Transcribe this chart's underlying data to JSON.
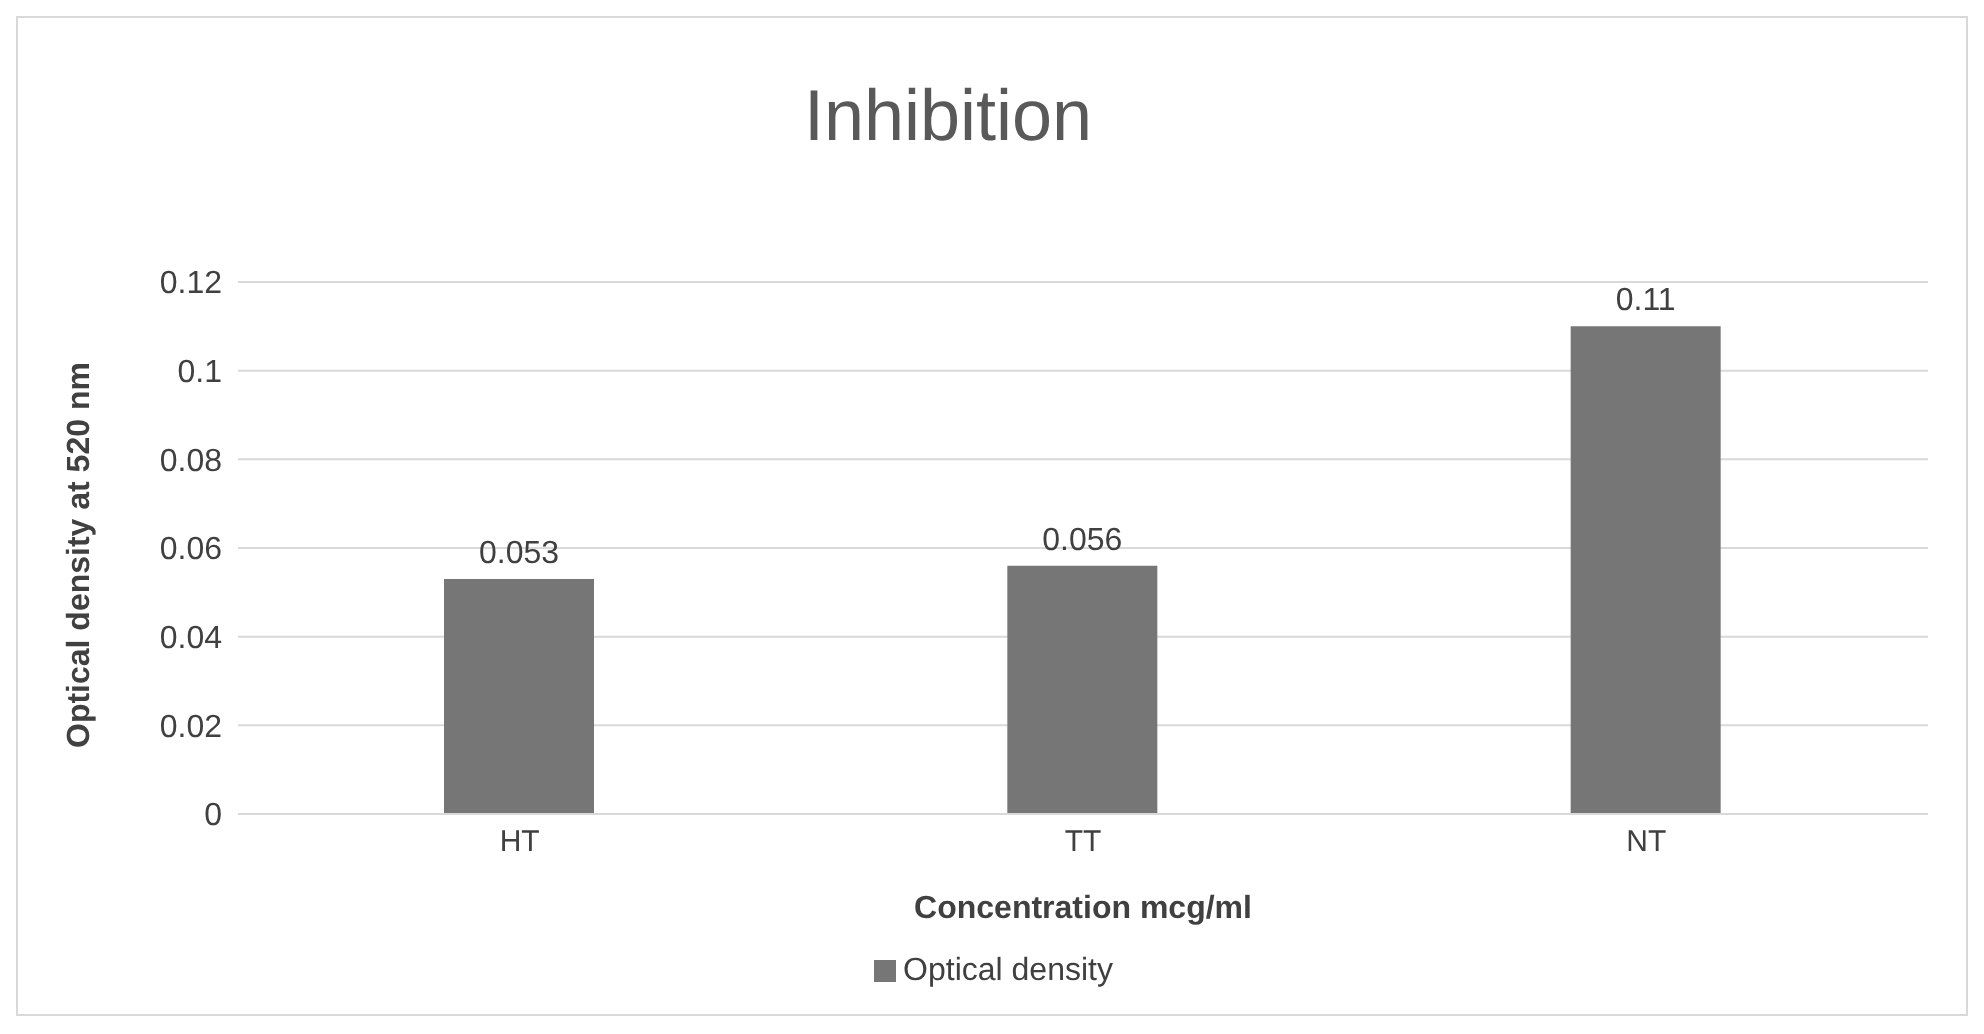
{
  "chart_data": {
    "type": "bar",
    "title": "Inhibition",
    "xlabel": "Concentration mcg/ml",
    "ylabel": "Optical density at 520 nm",
    "categories": [
      "HT",
      "TT",
      "NT"
    ],
    "series": [
      {
        "name": "Optical density",
        "color": "#767676",
        "values": [
          0.053,
          0.056,
          0.11
        ]
      }
    ],
    "ylim": [
      0,
      0.12
    ],
    "yticks": [
      0,
      0.02,
      0.04,
      0.06,
      0.08,
      0.1,
      0.12
    ],
    "grid": "y",
    "legend": "bottom",
    "data_labels": true
  }
}
